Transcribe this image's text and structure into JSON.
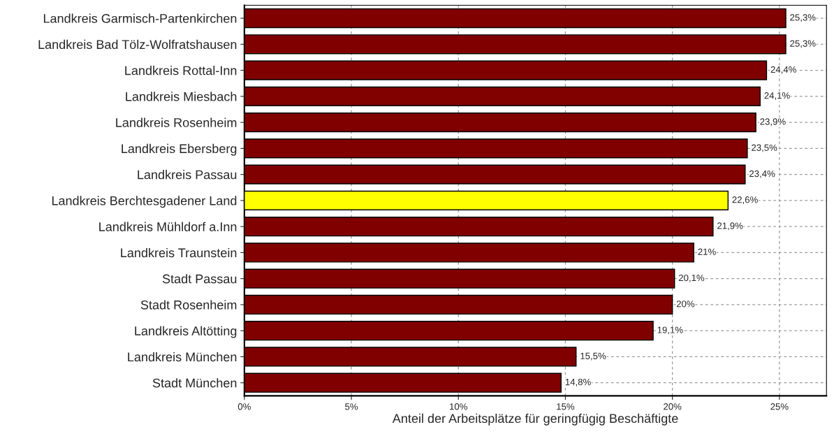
{
  "chart_data": {
    "type": "bar",
    "orientation": "horizontal",
    "xlabel": "Anteil der Arbeitsplätze für geringfügig Beschäftigte",
    "categories": [
      "Landkreis Garmisch-Partenkirchen",
      "Landkreis Bad Tölz-Wolfratshausen",
      "Landkreis Rottal-Inn",
      "Landkreis Miesbach",
      "Landkreis Rosenheim",
      "Landkreis Ebersberg",
      "Landkreis Passau",
      "Landkreis Berchtesgadener Land",
      "Landkreis Mühldorf a.Inn",
      "Landkreis Traunstein",
      "Stadt Passau",
      "Stadt Rosenheim",
      "Landkreis Altötting",
      "Landkreis München",
      "Stadt München"
    ],
    "values": [
      25.3,
      25.3,
      24.4,
      24.1,
      23.9,
      23.5,
      23.4,
      22.6,
      21.9,
      21,
      20.1,
      20,
      19.1,
      15.5,
      14.8
    ],
    "value_labels": [
      "25,3%",
      "25,3%",
      "24,4%",
      "24,1%",
      "23,9%",
      "23,5%",
      "23,4%",
      "22,6%",
      "21,9%",
      "21%",
      "20,1%",
      "20%",
      "19,1%",
      "15,5%",
      "14,8%"
    ],
    "colors": [
      "#800000",
      "#800000",
      "#800000",
      "#800000",
      "#800000",
      "#800000",
      "#800000",
      "#ffff00",
      "#800000",
      "#800000",
      "#800000",
      "#800000",
      "#800000",
      "#800000",
      "#800000"
    ],
    "xlim": [
      0,
      27.2
    ],
    "xticks": [
      {
        "value": 0,
        "label": "0%"
      },
      {
        "value": 5,
        "label": "5%"
      },
      {
        "value": 10,
        "label": "10%"
      },
      {
        "value": 15,
        "label": "15%"
      },
      {
        "value": 20,
        "label": "20%"
      },
      {
        "value": 25,
        "label": "25%"
      }
    ],
    "grid": true
  }
}
